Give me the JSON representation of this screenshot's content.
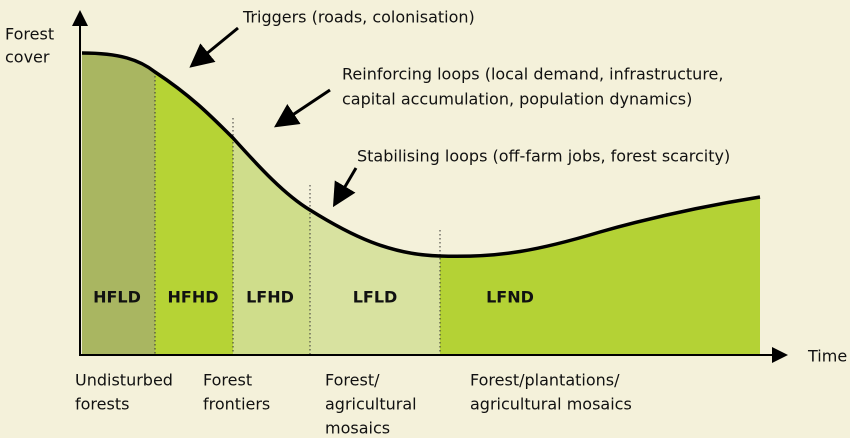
{
  "axis": {
    "y_label": [
      "Forest",
      "cover"
    ],
    "x_label": "Time"
  },
  "annotations": [
    {
      "lines": [
        "Triggers (roads, colonisation)"
      ]
    },
    {
      "lines": [
        "Reinforcing loops (local demand, infrastructure,",
        "capital accumulation, population dynamics)"
      ]
    },
    {
      "lines": [
        "Stabilising loops (off-farm jobs, forest scarcity)"
      ]
    }
  ],
  "phases": [
    {
      "label": "HFLD",
      "description": [
        "Undisturbed",
        "forests"
      ]
    },
    {
      "label": "HFHD",
      "description": [
        "Forest",
        "frontiers"
      ]
    },
    {
      "label": "LFHD",
      "description": []
    },
    {
      "label": "LFLD",
      "description": [
        "Forest/",
        "agricultural",
        "mosaics"
      ]
    },
    {
      "label": "LFND",
      "description": [
        "Forest/plantations/",
        "agricultural mosaics"
      ]
    }
  ]
}
